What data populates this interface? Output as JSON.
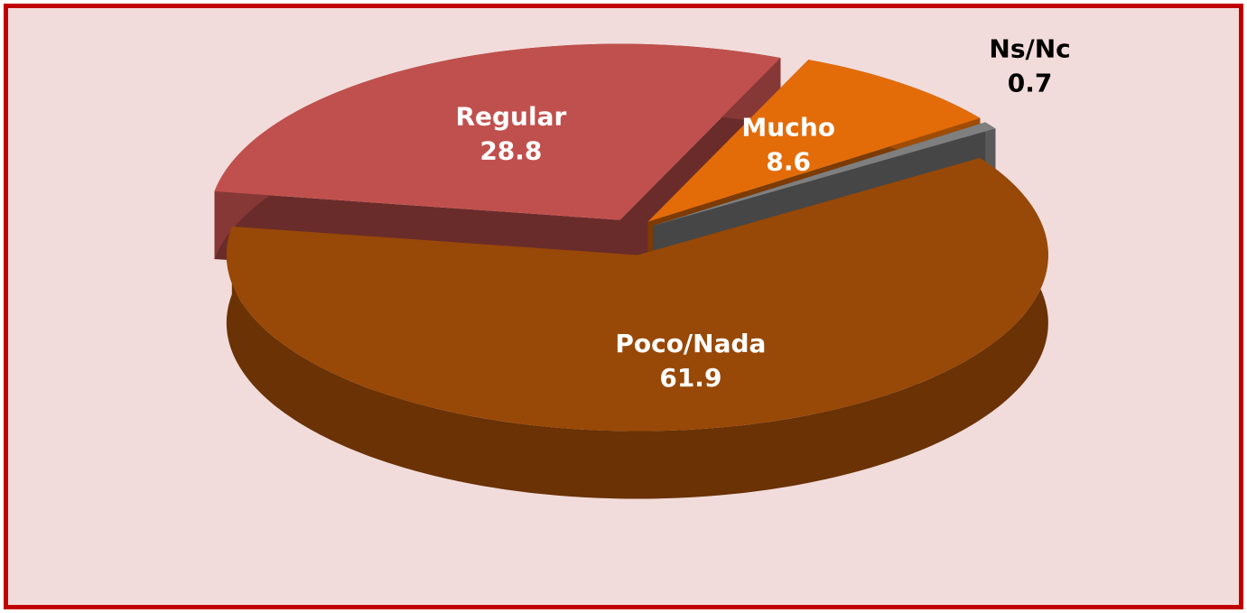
{
  "chart_data": {
    "type": "pie3d",
    "categories": [
      "Poco/Nada",
      "Regular",
      "Mucho",
      "Ns/Nc"
    ],
    "values": [
      61.9,
      28.8,
      8.6,
      0.7
    ],
    "colors": [
      "#984807",
      "#c0504d",
      "#e36c09",
      "#7f7f7f"
    ]
  }
}
